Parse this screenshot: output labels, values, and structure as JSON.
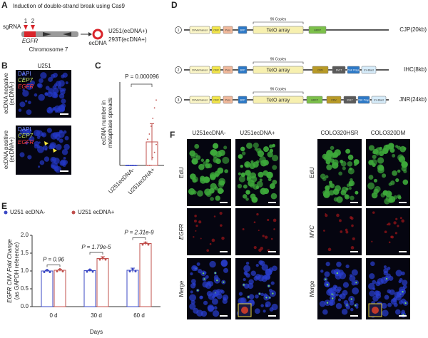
{
  "panel_labels": [
    "A",
    "B",
    "C",
    "D",
    "E",
    "F"
  ],
  "panel_a": {
    "title": "Induction of double-strand break using Cas9",
    "sgrna": "sgRNA",
    "sgrna_numbers": [
      "1",
      "2"
    ],
    "gene": "EGFR",
    "chromosome": "Chromosome 7",
    "ecdna": "ecDNA",
    "cell_lines": [
      "U251(ecDNA+)",
      "293T(ecDNA+)"
    ]
  },
  "panel_b": {
    "title": "U251",
    "rows": [
      [
        "ecDNA negative",
        "(ecDNA-)"
      ],
      [
        "ecDNA positive",
        "(ecDNA+)"
      ]
    ],
    "stain_legend": [
      "DAPI",
      "CEP7",
      "EGFR"
    ]
  },
  "panel_d": {
    "copies": "96 Copies",
    "constructs": [
      {
        "number": "1",
        "name": "CJP(20kb)",
        "parts": [
          "CMVenhancer",
          "CMV",
          "Puro",
          "BFP",
          "TetO array",
          "mRFP"
        ]
      },
      {
        "number": "2",
        "name": "IHC(8kb)",
        "parts": [
          "CMVenhancer",
          "CMV",
          "Puro",
          "BFP",
          "TetO array",
          "CMV",
          "SVLT",
          "PGK PolyA",
          "EV-Blast"
        ]
      },
      {
        "number": "3",
        "name": "JNR(24kb)",
        "parts": [
          "CMVenhancer",
          "CMV",
          "Puro",
          "BFP",
          "TetO array",
          "mRFP",
          "CMV",
          "SVLT",
          "PGK PolyA",
          "EV-Blast"
        ]
      }
    ]
  },
  "panel_f": {
    "columns": [
      "U251ecDNA-",
      "U251ecDNA+",
      "COLO320HSR",
      "COLO320DM"
    ],
    "row_labels_left": [
      "EdU",
      "EGFR",
      "Merge"
    ],
    "row_labels_right": [
      "EdU",
      "MYC",
      "Merge"
    ]
  },
  "chart_data": [
    {
      "type": "dot",
      "y_label": [
        "ecDNA number in",
        "metaphase spreads"
      ],
      "annotation": "P = 0.000096",
      "categories": [
        "U251ecDNA-",
        "U251ecDNA+"
      ],
      "colors": [
        "#3b48c4",
        "#c0504d"
      ],
      "values": [
        0,
        0.9
      ],
      "errors": [
        0,
        0.7
      ],
      "points": [
        [
          0,
          0,
          0,
          0,
          0,
          0,
          0,
          0,
          0,
          0
        ],
        [
          0,
          0,
          0,
          0.3,
          0.5,
          0.8,
          1,
          1.2,
          1.5,
          1.8,
          2.2,
          2.5
        ]
      ],
      "ylim": [
        0,
        3
      ]
    },
    {
      "type": "bar",
      "y_label": [
        "EGFR CNV Fold Change",
        "(as GAPDH reference)"
      ],
      "x_label": "Days",
      "categories": [
        "0 d",
        "30 d",
        "60 d"
      ],
      "series": [
        {
          "name": "U251 ecDNA-",
          "color": "#3b48c4",
          "values": [
            1.0,
            1.01,
            1.02
          ],
          "errors": [
            0.02,
            0.03,
            0.06
          ]
        },
        {
          "name": "U251 ecDNA+",
          "color": "#c0504d",
          "values": [
            1.02,
            1.35,
            1.77
          ],
          "errors": [
            0.03,
            0.05,
            0.04
          ]
        }
      ],
      "annotations": [
        "P = 0.96",
        "P = 1.79e-5",
        "P = 2.31e-9"
      ],
      "ylim": [
        0,
        2
      ],
      "yticks": [
        {
          "value": 0,
          "label": "0.0"
        },
        0.5,
        {
          "value": 1,
          "label": "1.0"
        },
        1.5,
        {
          "value": 2,
          "label": "2.0"
        }
      ],
      "legend": "top"
    }
  ]
}
